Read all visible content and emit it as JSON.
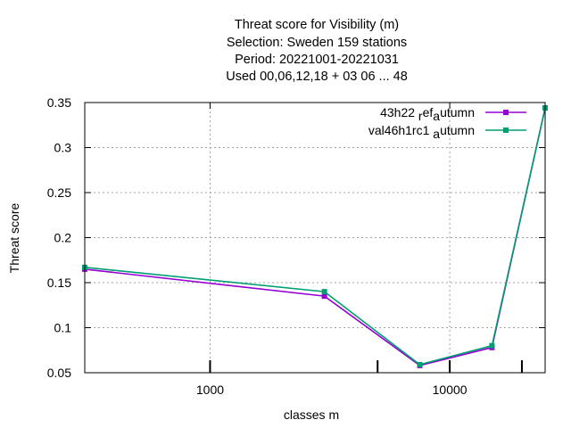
{
  "chart_data": {
    "type": "line",
    "title_lines": [
      "Threat score  for Visibility (m)",
      "Selection: Sweden    159 stations",
      "Period: 20221001-20221031",
      "Used  00,06,12,18  + 03 06 ... 48"
    ],
    "xlabel": "classes m",
    "ylabel": "Threat score",
    "x_scale": "log",
    "xlim": [
      300,
      25000
    ],
    "ylim": [
      0.05,
      0.35
    ],
    "grid": true,
    "legend_position": "top-right",
    "y_ticks": [
      0.05,
      0.1,
      0.15,
      0.2,
      0.25,
      0.3,
      0.35
    ],
    "y_tick_labels": [
      "0.05",
      "0.1",
      "0.15",
      "0.2",
      "0.25",
      "0.3",
      "0.35"
    ],
    "x_ticks": [
      1000,
      10000
    ],
    "x_tick_labels": [
      "1000",
      "10000"
    ],
    "x_minor_ticks": [
      5000,
      20000
    ],
    "series": [
      {
        "name": "43h22 ref autumn",
        "legend_parts": [
          "43h22 ",
          "r",
          "ef",
          "a",
          "utumn"
        ],
        "color": "#9400d3",
        "x": [
          300,
          3000,
          7500,
          15000,
          25000
        ],
        "y": [
          0.165,
          0.135,
          0.058,
          0.078,
          0.344
        ]
      },
      {
        "name": "val46h1rc1 autumn",
        "legend_parts": [
          "val46h1rc1 ",
          "",
          "",
          "a",
          "utumn"
        ],
        "color": "#009e73",
        "x": [
          300,
          3000,
          7500,
          15000,
          25000
        ],
        "y": [
          0.167,
          0.14,
          0.059,
          0.08,
          0.344
        ]
      }
    ]
  }
}
